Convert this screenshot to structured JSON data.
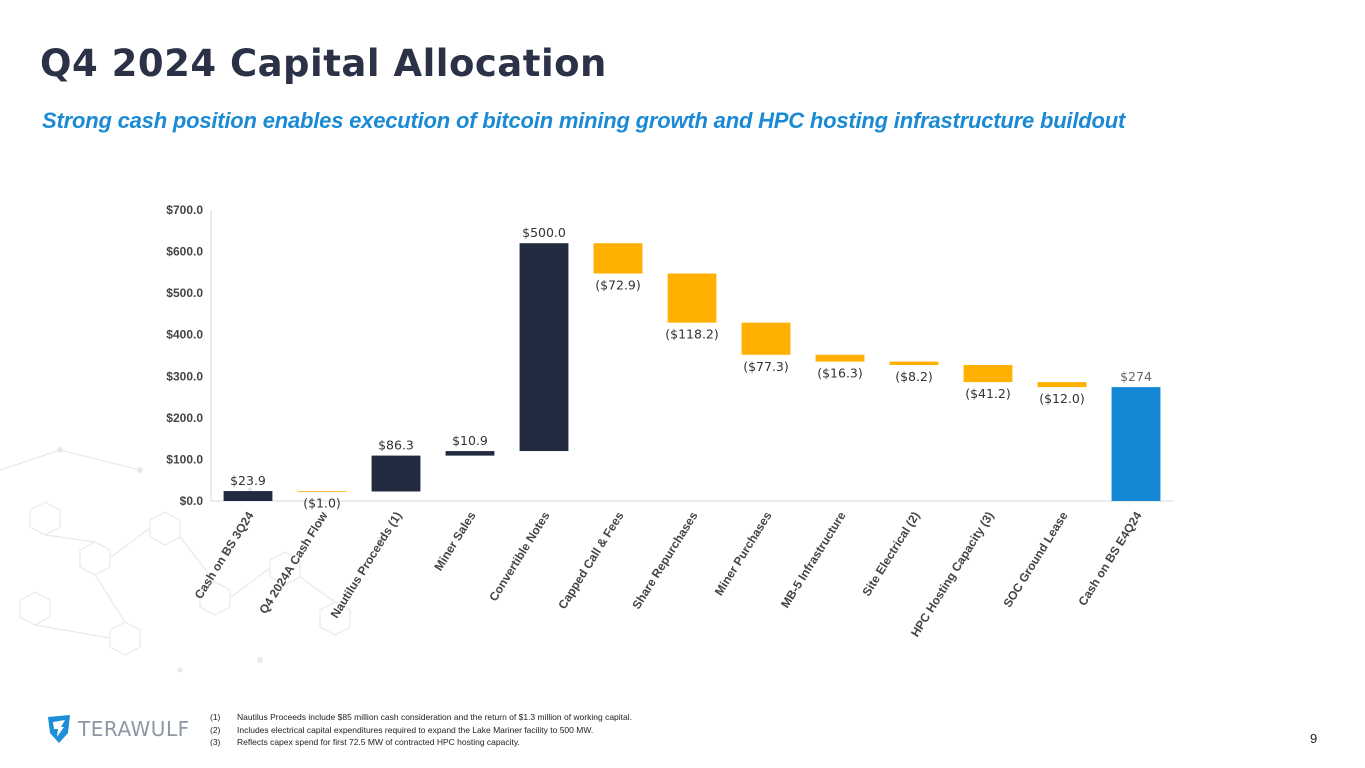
{
  "page": {
    "title": "Q4 2024 Capital Allocation",
    "subtitle": "Strong cash position enables execution of bitcoin mining growth and HPC hosting infrastructure buildout",
    "page_number": "9",
    "logo_text": "TERAWULF"
  },
  "footnotes": [
    {
      "num": "(1)",
      "text": "Nautilus Proceeds include $85 million cash consideration and the return of $1.3 million of working capital."
    },
    {
      "num": "(2)",
      "text": "Includes electrical capital expenditures required to expand the Lake Mariner facility to 500 MW."
    },
    {
      "num": "(3)",
      "text": "Reflects capex spend for first 72.5 MW of contracted HPC hosting capacity."
    }
  ],
  "colors": {
    "inflow": "#222a40",
    "outflow": "#ffb000",
    "total": "#1687d4",
    "axis_text": "#444444",
    "axis_line": "#d9d9d9"
  },
  "chart_data": {
    "type": "waterfall",
    "title": "",
    "xlabel": "",
    "ylabel": "",
    "ylim": [
      0,
      700
    ],
    "yticks": [
      0,
      100,
      200,
      300,
      400,
      500,
      600,
      700
    ],
    "ytick_labels": [
      "$0.0",
      "$100.0",
      "$200.0",
      "$300.0",
      "$400.0",
      "$500.0",
      "$600.0",
      "$700.0"
    ],
    "bars": [
      {
        "category": "Cash on BS 3Q24",
        "value": 23.9,
        "kind": "total",
        "label": "$23.9"
      },
      {
        "category": "Q4 2024A Cash Flow",
        "value": -1.0,
        "kind": "change",
        "label": "($1.0)"
      },
      {
        "category": "Nautilus Proceeds (1)",
        "value": 86.3,
        "kind": "change",
        "label": "$86.3"
      },
      {
        "category": "Miner Sales",
        "value": 10.9,
        "kind": "change",
        "label": "$10.9"
      },
      {
        "category": "Convertible Notes",
        "value": 500.0,
        "kind": "change",
        "label": "$500.0"
      },
      {
        "category": "Capped Call & Fees",
        "value": -72.9,
        "kind": "change",
        "label": "($72.9)"
      },
      {
        "category": "Share Repurchases",
        "value": -118.2,
        "kind": "change",
        "label": "($118.2)"
      },
      {
        "category": "Miner Purchases",
        "value": -77.3,
        "kind": "change",
        "label": "($77.3)"
      },
      {
        "category": "MB-5 Infrastructure",
        "value": -16.3,
        "kind": "change",
        "label": "($16.3)"
      },
      {
        "category": "Site Electrical (2)",
        "value": -8.2,
        "kind": "change",
        "label": "($8.2)"
      },
      {
        "category": "HPC Hosting Capacity (3)",
        "value": -41.2,
        "kind": "change",
        "label": "($41.2)"
      },
      {
        "category": "SOC Ground Lease",
        "value": -12.0,
        "kind": "change",
        "label": "($12.0)"
      },
      {
        "category": "Cash on BS E4Q24",
        "value": 274,
        "kind": "end",
        "label": "$274"
      }
    ]
  }
}
